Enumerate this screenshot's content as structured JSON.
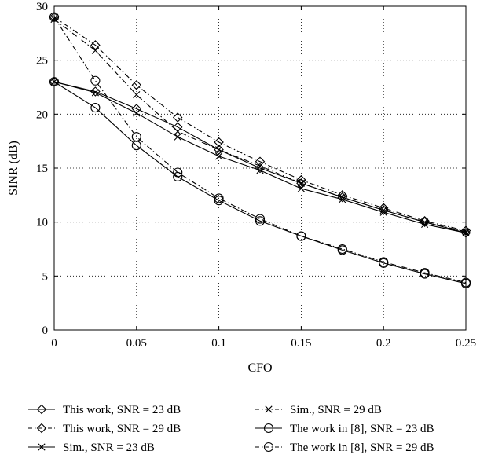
{
  "chart_data": {
    "type": "line",
    "xlabel": "CFO",
    "ylabel": "SINR (dB)",
    "xlim": [
      0,
      0.25
    ],
    "ylim": [
      0,
      30
    ],
    "xticks": [
      0,
      0.05,
      0.1,
      0.15,
      0.2,
      0.25
    ],
    "xtick_labels": [
      "0",
      "0.05",
      "0.1",
      "0.15",
      "0.2",
      "0.25"
    ],
    "yticks": [
      0,
      5,
      10,
      15,
      20,
      25,
      30
    ],
    "ytick_labels": [
      "0",
      "5",
      "10",
      "15",
      "20",
      "25",
      "30"
    ],
    "grid": true,
    "legend_position": "bottom",
    "x": [
      0,
      0.025,
      0.05,
      0.075,
      0.1,
      0.125,
      0.15,
      0.175,
      0.2,
      0.225,
      0.25
    ],
    "series": [
      {
        "name": "This work, SNR = 23 dB",
        "marker": "diamond",
        "dash": "solid",
        "values": [
          23.0,
          22.1,
          20.5,
          18.8,
          16.7,
          15.0,
          13.6,
          12.3,
          11.1,
          10.0,
          9.0
        ]
      },
      {
        "name": "This work, SNR = 29 dB",
        "marker": "diamond",
        "dash": "dashdot",
        "values": [
          29.0,
          26.4,
          22.7,
          19.7,
          17.4,
          15.6,
          13.9,
          12.5,
          11.3,
          10.1,
          9.2
        ]
      },
      {
        "name": "Sim., SNR = 23 dB",
        "marker": "x",
        "dash": "solid",
        "values": [
          23.0,
          22.0,
          20.1,
          17.9,
          16.1,
          14.8,
          13.1,
          12.1,
          10.9,
          9.8,
          9.0
        ]
      },
      {
        "name": "Sim., SNR = 29 dB",
        "marker": "x",
        "dash": "dashdot",
        "values": [
          28.8,
          25.9,
          21.8,
          18.4,
          16.7,
          15.2,
          13.6,
          12.3,
          11.1,
          10.0,
          9.1
        ]
      },
      {
        "name": "The work in [8], SNR = 23 dB",
        "marker": "circle",
        "dash": "solid",
        "values": [
          23.0,
          20.6,
          17.1,
          14.2,
          12.0,
          10.1,
          8.7,
          7.4,
          6.2,
          5.2,
          4.3
        ]
      },
      {
        "name": "The work in [8], SNR = 29 dB",
        "marker": "circle",
        "dash": "dashdot",
        "values": [
          29.0,
          23.1,
          17.9,
          14.6,
          12.2,
          10.3,
          8.7,
          7.5,
          6.3,
          5.3,
          4.4
        ]
      }
    ]
  }
}
